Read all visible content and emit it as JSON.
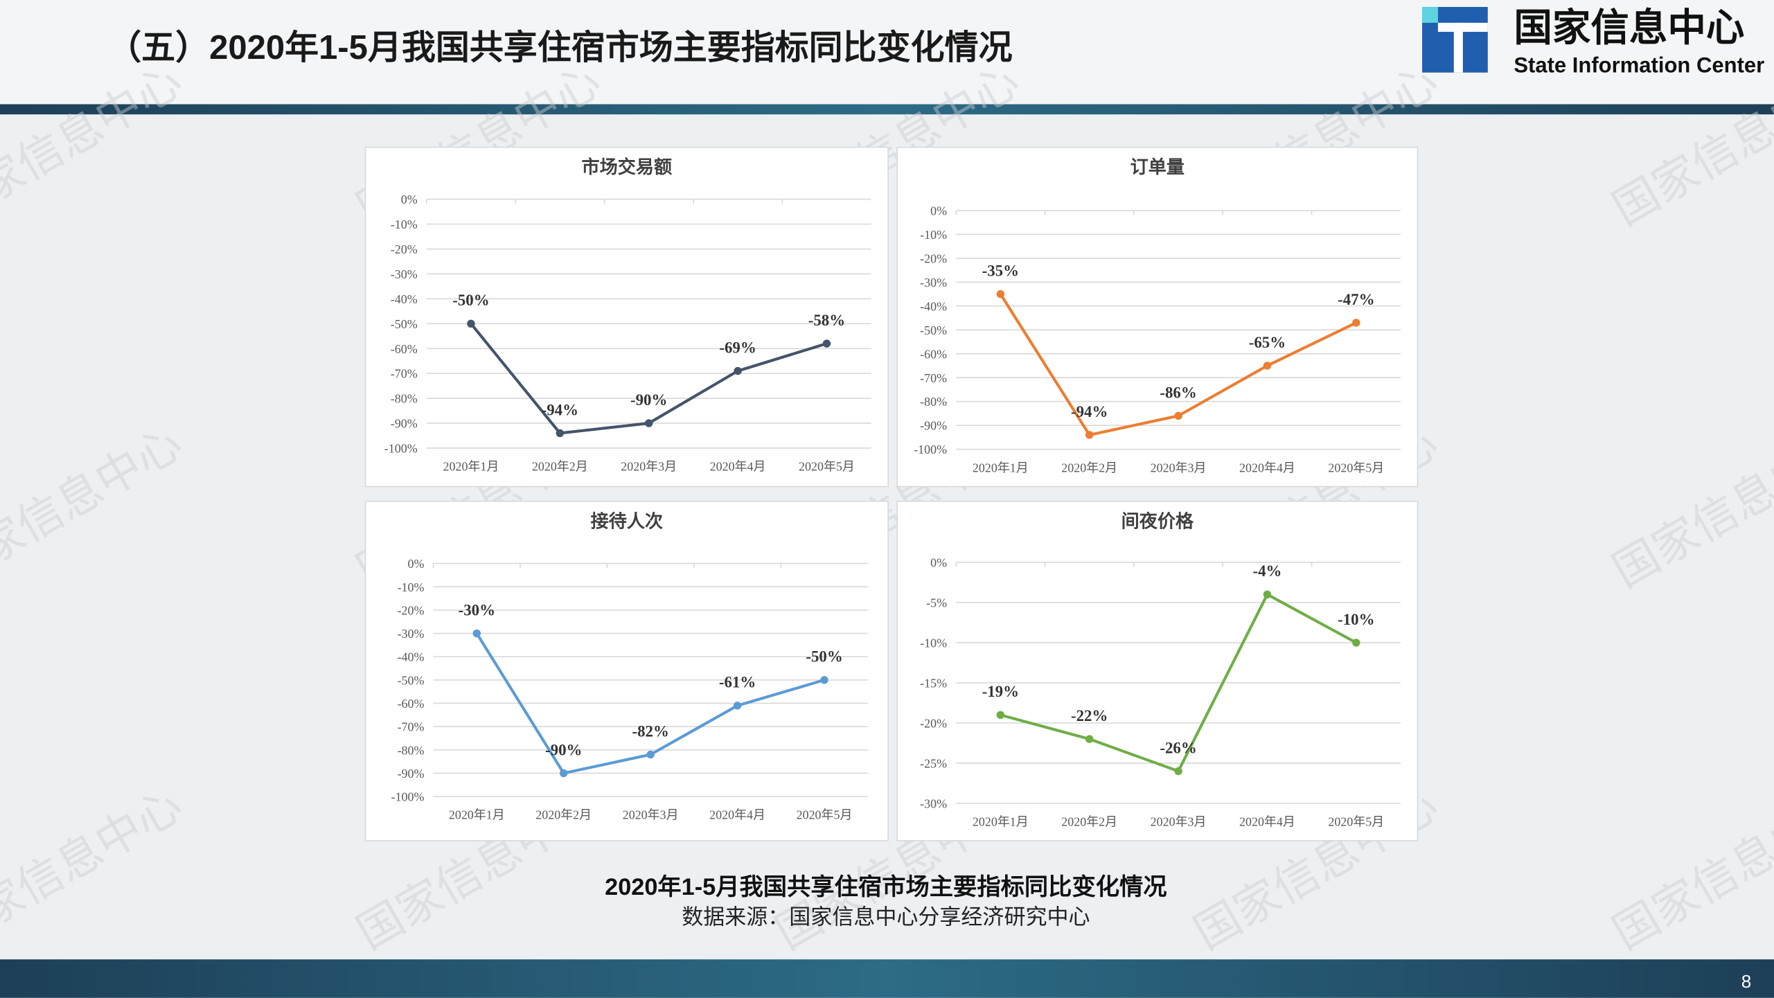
{
  "header": {
    "title": "（五）2020年1-5月我国共享住宿市场主要指标同比变化情况",
    "logo_cn": "国家信息中心",
    "logo_en": "State Information Center"
  },
  "watermark": "国家信息中心",
  "chart_data": [
    {
      "type": "line",
      "title": "市场交易额",
      "categories": [
        "2020年1月",
        "2020年2月",
        "2020年3月",
        "2020年4月",
        "2020年5月"
      ],
      "values": [
        -50,
        -94,
        -90,
        -69,
        -58
      ],
      "value_labels": [
        "-50%",
        "-94%",
        "-90%",
        "-69%",
        "-58%"
      ],
      "color": "#44546a",
      "ylim": [
        -100,
        0
      ],
      "yticks": [
        {
          "value": 0,
          "label": "0%"
        },
        {
          "value": -10,
          "label": "-10%"
        },
        {
          "value": -20,
          "label": "-20%"
        },
        {
          "value": -30,
          "label": "-30%"
        },
        {
          "value": -40,
          "label": "-40%"
        },
        {
          "value": -50,
          "label": "-50%"
        },
        {
          "value": -60,
          "label": "-60%"
        },
        {
          "value": -70,
          "label": "-70%"
        },
        {
          "value": -80,
          "label": "-80%"
        },
        {
          "value": -90,
          "label": "-90%"
        },
        {
          "value": -100,
          "label": "-100%"
        }
      ],
      "grid": true
    },
    {
      "type": "line",
      "title": "订单量",
      "categories": [
        "2020年1月",
        "2020年2月",
        "2020年3月",
        "2020年4月",
        "2020年5月"
      ],
      "values": [
        -35,
        -94,
        -86,
        -65,
        -47
      ],
      "value_labels": [
        "-35%",
        "-94%",
        "-86%",
        "-65%",
        "-47%"
      ],
      "color": "#ed7d31",
      "ylim": [
        -100,
        0
      ],
      "yticks": [
        {
          "value": 0,
          "label": "0%"
        },
        {
          "value": -10,
          "label": "-10%"
        },
        {
          "value": -20,
          "label": "-20%"
        },
        {
          "value": -30,
          "label": "-30%"
        },
        {
          "value": -40,
          "label": "-40%"
        },
        {
          "value": -50,
          "label": "-50%"
        },
        {
          "value": -60,
          "label": "-60%"
        },
        {
          "value": -70,
          "label": "-70%"
        },
        {
          "value": -80,
          "label": "-80%"
        },
        {
          "value": -90,
          "label": "-90%"
        },
        {
          "value": -100,
          "label": "-100%"
        }
      ],
      "grid": true
    },
    {
      "type": "line",
      "title": "接待人次",
      "categories": [
        "2020年1月",
        "2020年2月",
        "2020年3月",
        "2020年4月",
        "2020年5月"
      ],
      "values": [
        -30,
        -90,
        -82,
        -61,
        -50
      ],
      "value_labels": [
        "-30%",
        "-90%",
        "-82%",
        "-61%",
        "-50%"
      ],
      "color": "#5b9bd5",
      "ylim": [
        -100,
        0
      ],
      "yticks": [
        {
          "value": 0,
          "label": "0%"
        },
        {
          "value": -10,
          "label": "-10%"
        },
        {
          "value": -20,
          "label": "-20%"
        },
        {
          "value": -30,
          "label": "-30%"
        },
        {
          "value": -40,
          "label": "-40%"
        },
        {
          "value": -50,
          "label": "-50%"
        },
        {
          "value": -60,
          "label": "-60%"
        },
        {
          "value": -70,
          "label": "-70%"
        },
        {
          "value": -80,
          "label": "-80%"
        },
        {
          "value": -90,
          "label": "-90%"
        },
        {
          "value": -100,
          "label": "-100%"
        }
      ],
      "grid": true
    },
    {
      "type": "line",
      "title": "间夜价格",
      "categories": [
        "2020年1月",
        "2020年2月",
        "2020年3月",
        "2020年4月",
        "2020年5月"
      ],
      "values": [
        -19,
        -22,
        -26,
        -4,
        -10
      ],
      "value_labels": [
        "-19%",
        "-22%",
        "-26%",
        "-4%",
        "-10%"
      ],
      "color": "#70ad47",
      "ylim": [
        -30,
        0
      ],
      "yticks": [
        {
          "value": 0,
          "label": "0%"
        },
        {
          "value": -5,
          "label": "-5%"
        },
        {
          "value": -10,
          "label": "-10%"
        },
        {
          "value": -15,
          "label": "-15%"
        },
        {
          "value": -20,
          "label": "-20%"
        },
        {
          "value": -25,
          "label": "-25%"
        },
        {
          "value": -30,
          "label": "-30%"
        }
      ],
      "grid": true
    }
  ],
  "caption": "2020年1-5月我国共享住宿市场主要指标同比变化情况",
  "source": "数据来源：国家信息中心分享经济研究中心",
  "page_number": "8"
}
